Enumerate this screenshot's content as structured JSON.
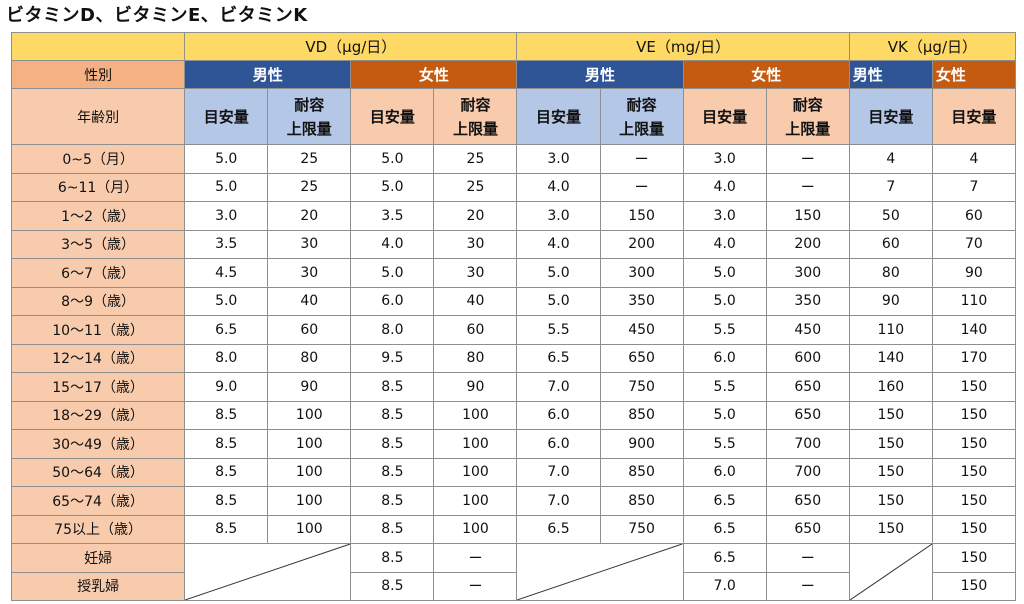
{
  "title": "ビタミンD、ビタミンE、ビタミンK",
  "header": {
    "vd": "VD（μg/日）",
    "ve": "VE（mg/日）",
    "vk": "VK（μg/日）",
    "sex_label": "性別",
    "male": "男性",
    "female": "女性",
    "age_label": "年齢別",
    "meyasu": "目安量",
    "taiyou_1": "耐容",
    "taiyou_2": "上限量"
  },
  "rows": [
    {
      "age": "0~5（月）",
      "v": [
        "5.0",
        "25",
        "5.0",
        "25",
        "3.0",
        "ー",
        "3.0",
        "ー",
        "4",
        "4"
      ]
    },
    {
      "age": "6~11（月）",
      "v": [
        "5.0",
        "25",
        "5.0",
        "25",
        "4.0",
        "ー",
        "4.0",
        "ー",
        "7",
        "7"
      ]
    },
    {
      "age": "1～2（歳）",
      "v": [
        "3.0",
        "20",
        "3.5",
        "20",
        "3.0",
        "150",
        "3.0",
        "150",
        "50",
        "60"
      ]
    },
    {
      "age": "3～5（歳）",
      "v": [
        "3.5",
        "30",
        "4.0",
        "30",
        "4.0",
        "200",
        "4.0",
        "200",
        "60",
        "70"
      ]
    },
    {
      "age": "6～7（歳）",
      "v": [
        "4.5",
        "30",
        "5.0",
        "30",
        "5.0",
        "300",
        "5.0",
        "300",
        "80",
        "90"
      ]
    },
    {
      "age": "8～9（歳）",
      "v": [
        "5.0",
        "40",
        "6.0",
        "40",
        "5.0",
        "350",
        "5.0",
        "350",
        "90",
        "110"
      ]
    },
    {
      "age": "10～11（歳）",
      "v": [
        "6.5",
        "60",
        "8.0",
        "60",
        "5.5",
        "450",
        "5.5",
        "450",
        "110",
        "140"
      ]
    },
    {
      "age": "12～14（歳）",
      "v": [
        "8.0",
        "80",
        "9.5",
        "80",
        "6.5",
        "650",
        "6.0",
        "600",
        "140",
        "170"
      ]
    },
    {
      "age": "15～17（歳）",
      "v": [
        "9.0",
        "90",
        "8.5",
        "90",
        "7.0",
        "750",
        "5.5",
        "650",
        "160",
        "150"
      ]
    },
    {
      "age": "18～29（歳）",
      "v": [
        "8.5",
        "100",
        "8.5",
        "100",
        "6.0",
        "850",
        "5.0",
        "650",
        "150",
        "150"
      ]
    },
    {
      "age": "30～49（歳）",
      "v": [
        "8.5",
        "100",
        "8.5",
        "100",
        "6.0",
        "900",
        "5.5",
        "700",
        "150",
        "150"
      ]
    },
    {
      "age": "50～64（歳）",
      "v": [
        "8.5",
        "100",
        "8.5",
        "100",
        "7.0",
        "850",
        "6.0",
        "700",
        "150",
        "150"
      ]
    },
    {
      "age": "65～74（歳）",
      "v": [
        "8.5",
        "100",
        "8.5",
        "100",
        "7.0",
        "850",
        "6.5",
        "650",
        "150",
        "150"
      ]
    },
    {
      "age": "75以上（歳）",
      "v": [
        "8.5",
        "100",
        "8.5",
        "100",
        "6.5",
        "750",
        "6.5",
        "650",
        "150",
        "150"
      ]
    }
  ],
  "special": [
    {
      "label": "妊婦",
      "vd_f": [
        "8.5",
        "ー"
      ],
      "ve_f": [
        "6.5",
        "ー"
      ],
      "vk_f": "150"
    },
    {
      "label": "授乳婦",
      "vd_f": [
        "8.5",
        "ー"
      ],
      "ve_f": [
        "7.0",
        "ー"
      ],
      "vk_f": "150"
    }
  ]
}
